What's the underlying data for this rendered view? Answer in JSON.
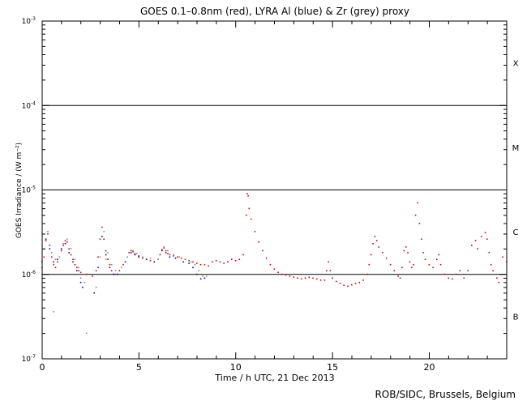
{
  "chart_data": {
    "type": "scatter",
    "title": "GOES 0.1–0.8nm (red), LYRA Al (blue) & Zr (grey) proxy",
    "xlabel": "Time / h UTC, 21 Dec 2013",
    "ylabel": "GOES Irradiance / (W m⁻²)",
    "xlim": [
      0,
      24
    ],
    "ylim": [
      1e-07,
      0.001
    ],
    "yscale": "log",
    "x_ticks": [
      {
        "value": 0,
        "label": "0"
      },
      {
        "value": 5,
        "label": "5"
      },
      {
        "value": 10,
        "label": "10"
      },
      {
        "value": 15,
        "label": "15"
      },
      {
        "value": 20,
        "label": "20"
      }
    ],
    "y_ticks": [
      {
        "value": 1e-07,
        "base": "10",
        "exp": "-7"
      },
      {
        "value": 1e-06,
        "base": "10",
        "exp": "-6"
      },
      {
        "value": 1e-05,
        "base": "10",
        "exp": "-5"
      },
      {
        "value": 0.0001,
        "base": "10",
        "exp": "-4"
      },
      {
        "value": 0.001,
        "base": "10",
        "exp": "-3"
      }
    ],
    "class_levels": [
      1e-06,
      1e-05,
      0.0001
    ],
    "class_labels": [
      {
        "label": "B",
        "y": 3.2e-07
      },
      {
        "label": "C",
        "y": 3.2e-06
      },
      {
        "label": "M",
        "y": 3.2e-05
      },
      {
        "label": "X",
        "y": 0.00032
      }
    ],
    "series": [
      {
        "color": "#d40000",
        "points": [
          [
            0.0,
            1.2e-06
          ],
          [
            0.1,
            1.6e-06
          ],
          [
            0.2,
            2.5e-06
          ],
          [
            0.3,
            3e-06
          ],
          [
            0.4,
            2.2e-06
          ],
          [
            0.5,
            1.6e-06
          ],
          [
            0.6,
            1.3e-06
          ],
          [
            0.7,
            1.2e-06
          ],
          [
            0.8,
            1.4e-06
          ],
          [
            0.9,
            1.6e-06
          ],
          [
            1.0,
            1.9e-06
          ],
          [
            1.1,
            2.2e-06
          ],
          [
            1.2,
            2.5e-06
          ],
          [
            1.3,
            2.4e-06
          ],
          [
            1.4,
            2e-06
          ],
          [
            1.5,
            1.7e-06
          ],
          [
            1.6,
            1.5e-06
          ],
          [
            1.7,
            1.3e-06
          ],
          [
            1.8,
            1.2e-06
          ],
          [
            1.9,
            1.1e-06
          ],
          [
            2.0,
            1.05e-06
          ],
          [
            2.3,
            1e-06
          ],
          [
            2.6,
            9.5e-07
          ],
          [
            2.8,
            1.1e-06
          ],
          [
            2.9,
            1.6e-06
          ],
          [
            3.0,
            2.6e-06
          ],
          [
            3.1,
            3.6e-06
          ],
          [
            3.2,
            2.6e-06
          ],
          [
            3.3,
            1.9e-06
          ],
          [
            3.4,
            1.5e-06
          ],
          [
            3.5,
            1.3e-06
          ],
          [
            3.6,
            1.1e-06
          ],
          [
            3.7,
            1e-06
          ],
          [
            3.8,
            1e-06
          ],
          [
            4.0,
            1.1e-06
          ],
          [
            4.2,
            1.3e-06
          ],
          [
            4.4,
            1.6e-06
          ],
          [
            4.5,
            1.8e-06
          ],
          [
            4.6,
            1.9e-06
          ],
          [
            4.7,
            1.85e-06
          ],
          [
            4.8,
            1.75e-06
          ],
          [
            5.0,
            1.65e-06
          ],
          [
            5.2,
            1.55e-06
          ],
          [
            5.4,
            1.5e-06
          ],
          [
            5.6,
            1.45e-06
          ],
          [
            5.8,
            1.4e-06
          ],
          [
            6.0,
            1.5e-06
          ],
          [
            6.1,
            1.7e-06
          ],
          [
            6.2,
            1.95e-06
          ],
          [
            6.3,
            2.05e-06
          ],
          [
            6.4,
            1.9e-06
          ],
          [
            6.5,
            1.75e-06
          ],
          [
            6.6,
            1.7e-06
          ],
          [
            6.8,
            1.65e-06
          ],
          [
            7.0,
            1.6e-06
          ],
          [
            7.2,
            1.55e-06
          ],
          [
            7.4,
            1.5e-06
          ],
          [
            7.6,
            1.45e-06
          ],
          [
            7.8,
            1.4e-06
          ],
          [
            8.0,
            1.35e-06
          ],
          [
            8.2,
            1.3e-06
          ],
          [
            8.4,
            1.3e-06
          ],
          [
            8.6,
            1.25e-06
          ],
          [
            8.8,
            1.4e-06
          ],
          [
            9.0,
            1.45e-06
          ],
          [
            9.2,
            1.4e-06
          ],
          [
            9.4,
            1.35e-06
          ],
          [
            9.6,
            1.4e-06
          ],
          [
            9.8,
            1.5e-06
          ],
          [
            10.0,
            1.45e-06
          ],
          [
            10.2,
            1.5e-06
          ],
          [
            10.4,
            1.7e-06
          ],
          [
            10.55,
            5e-06
          ],
          [
            10.6,
            9e-06
          ],
          [
            10.65,
            8.5e-06
          ],
          [
            10.7,
            6e-06
          ],
          [
            10.8,
            4.5e-06
          ],
          [
            11.0,
            3.2e-06
          ],
          [
            11.2,
            2.4e-06
          ],
          [
            11.4,
            1.9e-06
          ],
          [
            11.6,
            1.55e-06
          ],
          [
            11.8,
            1.3e-06
          ],
          [
            12.0,
            1.15e-06
          ],
          [
            12.2,
            1.05e-06
          ],
          [
            12.4,
            1e-06
          ],
          [
            12.6,
            9.8e-07
          ],
          [
            12.8,
            9.5e-07
          ],
          [
            13.0,
            9.2e-07
          ],
          [
            13.2,
            9e-07
          ],
          [
            13.4,
            8.8e-07
          ],
          [
            13.6,
            9e-07
          ],
          [
            13.8,
            9.2e-07
          ],
          [
            14.0,
            9e-07
          ],
          [
            14.2,
            8.8e-07
          ],
          [
            14.4,
            8.5e-07
          ],
          [
            14.6,
            8.5e-07
          ],
          [
            14.7,
            1.1e-06
          ],
          [
            14.8,
            1.4e-06
          ],
          [
            14.9,
            1.1e-06
          ],
          [
            15.0,
            9e-07
          ],
          [
            15.2,
            8.2e-07
          ],
          [
            15.4,
            7.8e-07
          ],
          [
            15.6,
            7.4e-07
          ],
          [
            15.8,
            7.2e-07
          ],
          [
            16.0,
            7.5e-07
          ],
          [
            16.2,
            7.8e-07
          ],
          [
            16.4,
            8e-07
          ],
          [
            16.6,
            8.5e-07
          ],
          [
            16.8,
            1e-06
          ],
          [
            16.9,
            1.3e-06
          ],
          [
            17.0,
            1.7e-06
          ],
          [
            17.1,
            2.3e-06
          ],
          [
            17.2,
            2.8e-06
          ],
          [
            17.3,
            2.5e-06
          ],
          [
            17.4,
            2.1e-06
          ],
          [
            17.6,
            1.8e-06
          ],
          [
            17.8,
            1.55e-06
          ],
          [
            18.0,
            1.3e-06
          ],
          [
            18.2,
            1.1e-06
          ],
          [
            18.4,
            9.5e-07
          ],
          [
            18.5,
            9e-07
          ],
          [
            18.6,
            1.2e-06
          ],
          [
            18.7,
            1.9e-06
          ],
          [
            18.8,
            2.1e-06
          ],
          [
            18.9,
            1.8e-06
          ],
          [
            19.0,
            1.4e-06
          ],
          [
            19.1,
            1.2e-06
          ],
          [
            19.2,
            1.3e-06
          ],
          [
            19.3,
            5e-06
          ],
          [
            19.4,
            7e-06
          ],
          [
            19.5,
            4e-06
          ],
          [
            19.6,
            2.6e-06
          ],
          [
            19.7,
            1.8e-06
          ],
          [
            19.8,
            1.5e-06
          ],
          [
            20.0,
            1.3e-06
          ],
          [
            20.2,
            1.2e-06
          ],
          [
            20.4,
            1.5e-06
          ],
          [
            20.5,
            1.7e-06
          ],
          [
            20.6,
            1.3e-06
          ],
          [
            20.8,
            1e-06
          ],
          [
            21.0,
            9e-07
          ],
          [
            21.2,
            8.8e-07
          ],
          [
            21.4,
            1e-06
          ],
          [
            21.6,
            1.1e-06
          ],
          [
            21.8,
            9e-07
          ],
          [
            22.0,
            1.1e-06
          ],
          [
            22.2,
            2.2e-06
          ],
          [
            22.4,
            2.5e-06
          ],
          [
            22.5,
            2e-06
          ],
          [
            22.7,
            2.8e-06
          ],
          [
            22.9,
            3.1e-06
          ],
          [
            23.0,
            2.6e-06
          ],
          [
            23.1,
            1.8e-06
          ],
          [
            23.2,
            1.3e-06
          ],
          [
            23.3,
            1.1e-06
          ],
          [
            23.5,
            9e-07
          ],
          [
            23.6,
            8e-07
          ],
          [
            23.8,
            1.6e-06
          ],
          [
            24.0,
            1.4e-06
          ]
        ]
      },
      {
        "color": "#0000d0",
        "points": [
          [
            0.0,
            1.4e-06
          ],
          [
            0.2,
            2.6e-06
          ],
          [
            0.4,
            2e-06
          ],
          [
            0.6,
            1.4e-06
          ],
          [
            0.8,
            1.5e-06
          ],
          [
            1.0,
            2e-06
          ],
          [
            1.2,
            2.3e-06
          ],
          [
            1.4,
            1.8e-06
          ],
          [
            1.6,
            1.4e-06
          ],
          [
            1.8,
            1.1e-06
          ],
          [
            2.0,
            8e-07
          ],
          [
            2.1,
            7e-07
          ],
          [
            2.7,
            6e-07
          ],
          [
            2.9,
            1.2e-06
          ],
          [
            3.1,
            2.8e-06
          ],
          [
            3.3,
            1.7e-06
          ],
          [
            3.5,
            1.2e-06
          ],
          [
            3.7,
            1e-06
          ],
          [
            3.9,
            1e-06
          ],
          [
            4.3,
            1.4e-06
          ],
          [
            4.6,
            1.8e-06
          ],
          [
            4.8,
            1.7e-06
          ],
          [
            5.0,
            1.6e-06
          ],
          [
            5.4,
            1.5e-06
          ],
          [
            5.8,
            1.4e-06
          ],
          [
            6.2,
            1.9e-06
          ],
          [
            6.4,
            1.8e-06
          ],
          [
            6.6,
            1.6e-06
          ],
          [
            6.9,
            1.55e-06
          ],
          [
            7.3,
            1.4e-06
          ],
          [
            7.6,
            1.35e-06
          ],
          [
            7.8,
            1.2e-06
          ],
          [
            8.0,
            1e-06
          ],
          [
            8.2,
            8.8e-07
          ],
          [
            8.4,
            9e-07
          ]
        ]
      },
      {
        "color": "#888888",
        "points": [
          [
            0.1,
            2e-06
          ],
          [
            0.3,
            3.2e-06
          ],
          [
            0.5,
            1.8e-06
          ],
          [
            0.7,
            1.5e-06
          ],
          [
            0.9,
            1.6e-06
          ],
          [
            1.1,
            2.3e-06
          ],
          [
            1.3,
            2.6e-06
          ],
          [
            1.5,
            2e-06
          ],
          [
            1.7,
            1.5e-06
          ],
          [
            1.9,
            1.2e-06
          ],
          [
            2.0,
            9e-07
          ],
          [
            2.2,
            8e-07
          ],
          [
            2.8,
            7e-07
          ],
          [
            3.0,
            1.6e-06
          ],
          [
            3.2,
            3.2e-06
          ],
          [
            3.4,
            1.8e-06
          ],
          [
            3.6,
            1.3e-06
          ],
          [
            3.8,
            1.1e-06
          ],
          [
            4.1,
            1.2e-06
          ],
          [
            4.4,
            1.6e-06
          ],
          [
            4.7,
            1.9e-06
          ],
          [
            4.9,
            1.75e-06
          ],
          [
            5.2,
            1.6e-06
          ],
          [
            5.6,
            1.55e-06
          ],
          [
            6.0,
            1.5e-06
          ],
          [
            6.3,
            2.1e-06
          ],
          [
            6.5,
            1.9e-06
          ],
          [
            6.8,
            1.7e-06
          ],
          [
            7.1,
            1.6e-06
          ],
          [
            7.4,
            1.5e-06
          ],
          [
            7.7,
            1.4e-06
          ],
          [
            7.9,
            1.3e-06
          ],
          [
            8.1,
            1.1e-06
          ],
          [
            8.3,
            9.5e-07
          ],
          [
            8.5,
            9.5e-07
          ],
          [
            0.6,
            3.6e-07
          ],
          [
            2.3,
            2e-07
          ],
          [
            3.3,
            1.5e-06
          ]
        ]
      }
    ]
  },
  "credit": "ROB/SIDC, Brussels, Belgium"
}
